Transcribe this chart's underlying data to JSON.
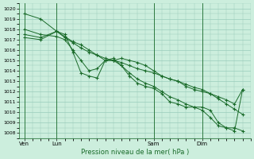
{
  "title": "Pression niveau de la mer( hPa )",
  "bg_color": "#cceedd",
  "grid_color": "#99ccbb",
  "line_color": "#1a6b2a",
  "marker_color": "#1a6b2a",
  "ylim": [
    1007.5,
    1020.5
  ],
  "yticks": [
    1008,
    1009,
    1010,
    1011,
    1012,
    1013,
    1014,
    1015,
    1016,
    1017,
    1018,
    1019,
    1020
  ],
  "xtick_labels": [
    "Ven",
    "Lun",
    "Sam",
    "Dim"
  ],
  "xtick_positions": [
    0,
    12,
    48,
    66
  ],
  "xlim": [
    -2,
    84
  ],
  "vline_positions": [
    0,
    12,
    48,
    66
  ],
  "series": [
    {
      "x": [
        0,
        6,
        12,
        15,
        18,
        21,
        24,
        27,
        30,
        33,
        36,
        39,
        42,
        45,
        48,
        51,
        54,
        57,
        60,
        63,
        66,
        69,
        72,
        75,
        78,
        81
      ],
      "y": [
        1019.5,
        1019.0,
        1017.8,
        1017.2,
        1016.7,
        1016.2,
        1015.8,
        1015.5,
        1015.2,
        1015.0,
        1014.8,
        1014.5,
        1014.2,
        1014.0,
        1013.8,
        1013.5,
        1013.2,
        1013.0,
        1012.7,
        1012.4,
        1012.2,
        1011.8,
        1011.3,
        1010.8,
        1010.3,
        1009.8
      ]
    },
    {
      "x": [
        0,
        6,
        12,
        15,
        18,
        21,
        24,
        27,
        30,
        33,
        36,
        39,
        42,
        45,
        48,
        51,
        54,
        57,
        60,
        63,
        66,
        69,
        72,
        75,
        78,
        81
      ],
      "y": [
        1018.0,
        1017.5,
        1017.3,
        1017.0,
        1016.0,
        1015.0,
        1014.0,
        1014.2,
        1015.0,
        1015.0,
        1014.5,
        1013.8,
        1013.2,
        1012.8,
        1012.5,
        1012.0,
        1011.5,
        1011.2,
        1010.8,
        1010.5,
        1010.5,
        1010.2,
        1009.0,
        1008.5,
        1008.5,
        1008.2
      ]
    },
    {
      "x": [
        0,
        6,
        12,
        15,
        18,
        21,
        24,
        27,
        30,
        33,
        36,
        39,
        42,
        45,
        48,
        51,
        54,
        57,
        60,
        63,
        66,
        69,
        72,
        75,
        78,
        81
      ],
      "y": [
        1017.5,
        1017.2,
        1017.8,
        1017.5,
        1015.8,
        1013.8,
        1013.5,
        1013.3,
        1015.0,
        1015.2,
        1014.5,
        1013.5,
        1012.8,
        1012.5,
        1012.3,
        1011.8,
        1011.0,
        1010.8,
        1010.5,
        1010.5,
        1010.2,
        1009.5,
        1008.7,
        1008.5,
        1008.2,
        1012.2
      ]
    },
    {
      "x": [
        0,
        6,
        12,
        15,
        18,
        21,
        24,
        27,
        30,
        33,
        36,
        39,
        42,
        45,
        48,
        51,
        54,
        57,
        60,
        63,
        66,
        69,
        72,
        75,
        78,
        81
      ],
      "y": [
        1017.2,
        1017.0,
        1017.8,
        1017.3,
        1016.8,
        1016.5,
        1016.0,
        1015.5,
        1015.0,
        1015.0,
        1015.2,
        1015.0,
        1014.8,
        1014.5,
        1014.0,
        1013.5,
        1013.2,
        1013.0,
        1012.5,
        1012.2,
        1012.0,
        1011.8,
        1011.5,
        1011.2,
        1010.8,
        1012.2
      ]
    }
  ]
}
